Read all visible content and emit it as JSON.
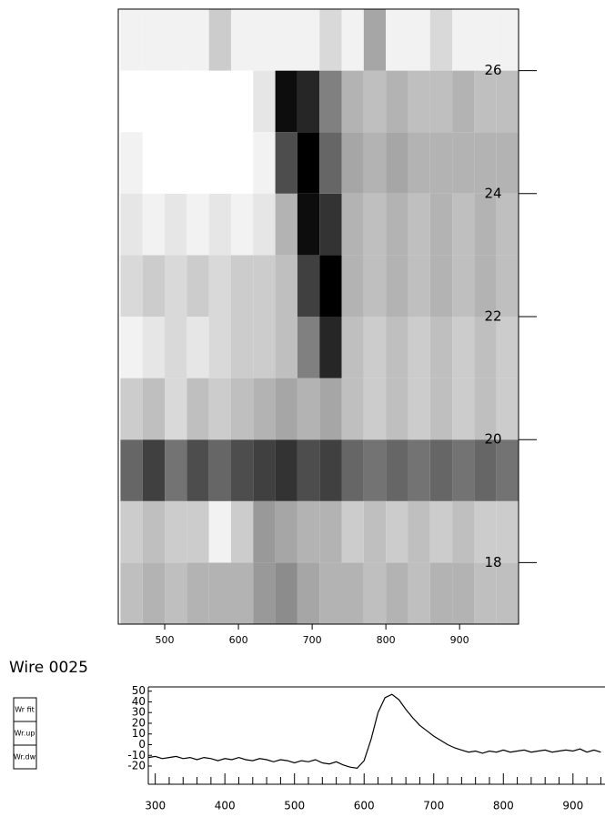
{
  "ui": {
    "wire_label": "Wire 0025",
    "buttons": [
      "Wr fit",
      "Wr.up",
      "Wr.dw"
    ]
  },
  "chart_data": [
    {
      "type": "heatmap",
      "xbins": [
        440,
        470,
        500,
        530,
        560,
        590,
        620,
        650,
        680,
        710,
        740,
        770,
        800,
        830,
        860,
        890,
        920,
        950,
        980
      ],
      "ybins": [
        17,
        18,
        19,
        20,
        21,
        22,
        23,
        24,
        25,
        26,
        27
      ],
      "z": [
        [
          0.25,
          0.3,
          0.25,
          0.3,
          0.3,
          0.3,
          0.4,
          0.45,
          0.35,
          0.3,
          0.3,
          0.25,
          0.3,
          0.25,
          0.3,
          0.3,
          0.25,
          0.25
        ],
        [
          0.2,
          0.25,
          0.2,
          0.2,
          0.05,
          0.2,
          0.4,
          0.35,
          0.3,
          0.3,
          0.2,
          0.25,
          0.2,
          0.25,
          0.2,
          0.25,
          0.2,
          0.2
        ],
        [
          0.6,
          0.75,
          0.55,
          0.7,
          0.6,
          0.7,
          0.75,
          0.8,
          0.7,
          0.75,
          0.6,
          0.55,
          0.6,
          0.55,
          0.6,
          0.55,
          0.6,
          0.55
        ],
        [
          0.2,
          0.25,
          0.15,
          0.25,
          0.2,
          0.25,
          0.3,
          0.35,
          0.3,
          0.35,
          0.25,
          0.2,
          0.25,
          0.2,
          0.25,
          0.2,
          0.25,
          0.2
        ],
        [
          0.05,
          0.1,
          0.15,
          0.1,
          0.15,
          0.2,
          0.2,
          0.25,
          0.5,
          0.85,
          0.25,
          0.2,
          0.25,
          0.2,
          0.25,
          0.2,
          0.25,
          0.2
        ],
        [
          0.15,
          0.2,
          0.15,
          0.2,
          0.15,
          0.2,
          0.2,
          0.25,
          0.75,
          1,
          0.3,
          0.25,
          0.3,
          0.25,
          0.3,
          0.25,
          0.3,
          0.25
        ],
        [
          0.1,
          0.05,
          0.1,
          0.05,
          0.1,
          0.05,
          0.1,
          0.3,
          0.95,
          0.8,
          0.3,
          0.25,
          0.3,
          0.25,
          0.3,
          0.25,
          0.3,
          0.25
        ],
        [
          0.05,
          0,
          0,
          0,
          0,
          0,
          0.05,
          0.7,
          1,
          0.6,
          0.35,
          0.3,
          0.35,
          0.3,
          0.3,
          0.3,
          0.3,
          0.3
        ],
        [
          0,
          0,
          0,
          0,
          0,
          0,
          0.1,
          0.95,
          0.85,
          0.5,
          0.3,
          0.25,
          0.3,
          0.25,
          0.25,
          0.3,
          0.25,
          0.25
        ],
        [
          0.05,
          0.05,
          0.05,
          0.05,
          0.2,
          0.05,
          0.05,
          0.05,
          0.05,
          0.15,
          0.05,
          0.35,
          0.05,
          0.05,
          0.15,
          0.05,
          0.05,
          0.05
        ]
      ],
      "xlim": [
        437,
        980
      ],
      "ylim": [
        17,
        27
      ],
      "xticks": [
        500,
        600,
        700,
        800,
        900
      ],
      "yticks": [
        18,
        20,
        22,
        24,
        26
      ]
    },
    {
      "type": "line",
      "x": [
        290,
        300,
        310,
        320,
        330,
        340,
        350,
        360,
        370,
        380,
        390,
        400,
        410,
        420,
        430,
        440,
        450,
        460,
        470,
        480,
        490,
        500,
        510,
        520,
        530,
        540,
        550,
        560,
        570,
        580,
        590,
        600,
        610,
        620,
        630,
        640,
        650,
        660,
        670,
        680,
        690,
        700,
        710,
        720,
        730,
        740,
        750,
        760,
        770,
        780,
        790,
        800,
        810,
        820,
        830,
        840,
        850,
        860,
        870,
        880,
        890,
        900,
        910,
        920,
        930,
        940
      ],
      "values": [
        -12,
        -11,
        -13,
        -12,
        -11,
        -13,
        -12,
        -14,
        -12,
        -13,
        -15,
        -13,
        -14,
        -12,
        -14,
        -15,
        -13,
        -14,
        -16,
        -14,
        -15,
        -17,
        -15,
        -16,
        -14,
        -17,
        -18,
        -16,
        -19,
        -21,
        -22,
        -15,
        5,
        30,
        44,
        47,
        42,
        33,
        25,
        18,
        13,
        8,
        4,
        0,
        -3,
        -5,
        -7,
        -6,
        -8,
        -6,
        -7,
        -5,
        -7,
        -6,
        -5,
        -7,
        -6,
        -5,
        -7,
        -6,
        -5,
        -6,
        -4,
        -7,
        -5,
        -7
      ],
      "color": "#000000",
      "xlim": [
        290,
        946
      ],
      "ylim": [
        -37,
        54
      ],
      "xticks": [
        300,
        400,
        500,
        600,
        700,
        800,
        900
      ],
      "xminorticks": [
        320,
        340,
        360,
        380,
        420,
        440,
        460,
        480,
        520,
        540,
        560,
        580,
        620,
        640,
        660,
        680,
        720,
        740,
        760,
        780,
        820,
        840,
        860,
        880,
        920,
        940
      ],
      "yticks": [
        -20,
        -10,
        0,
        10,
        20,
        30,
        40,
        50
      ]
    }
  ]
}
